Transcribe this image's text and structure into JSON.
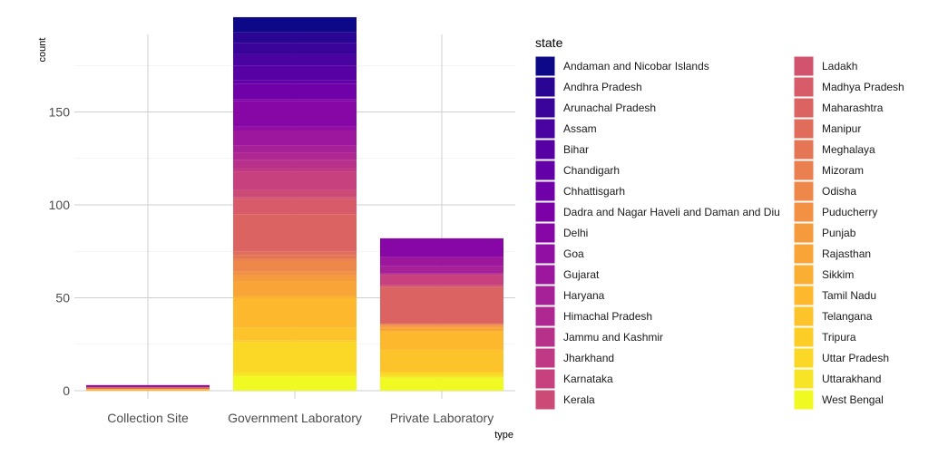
{
  "chart_data": {
    "type": "bar",
    "stacked": true,
    "xlabel": "type",
    "ylabel": "count",
    "ylim": [
      0,
      188
    ],
    "yticks": [
      0,
      50,
      100,
      150
    ],
    "grid": true,
    "legend_position": "right",
    "legend_title": "state",
    "categories": [
      "Collection Site",
      "Government Laboratory",
      "Private Laboratory"
    ],
    "series": [
      {
        "name": "Andaman and Nicobar Islands",
        "color": "#0D0887",
        "values": [
          0,
          8,
          0
        ]
      },
      {
        "name": "Andhra Pradesh",
        "color": "#2A0593",
        "values": [
          0,
          6,
          0
        ]
      },
      {
        "name": "Arunachal Pradesh",
        "color": "#3A049A",
        "values": [
          0,
          6,
          0
        ]
      },
      {
        "name": "Assam",
        "color": "#4903A0",
        "values": [
          0,
          6,
          0
        ]
      },
      {
        "name": "Bihar",
        "color": "#5701A4",
        "values": [
          0,
          8,
          0
        ]
      },
      {
        "name": "Chandigarh",
        "color": "#6300A7",
        "values": [
          0,
          2,
          0
        ]
      },
      {
        "name": "Chhattisgarh",
        "color": "#7000A8",
        "values": [
          0,
          8,
          0
        ]
      },
      {
        "name": "Dadra and Nagar Haveli and Daman and Diu",
        "color": "#7C02A8",
        "values": [
          0,
          1,
          0
        ]
      },
      {
        "name": "Delhi",
        "color": "#8707A6",
        "values": [
          1,
          14,
          10
        ]
      },
      {
        "name": "Goa",
        "color": "#920FA3",
        "values": [
          0,
          2,
          0
        ]
      },
      {
        "name": "Gujarat",
        "color": "#9C179E",
        "values": [
          0,
          8,
          5
        ]
      },
      {
        "name": "Haryana",
        "color": "#A62098",
        "values": [
          0,
          4,
          4
        ]
      },
      {
        "name": "Himachal Pradesh",
        "color": "#AF2892",
        "values": [
          0,
          4,
          0
        ]
      },
      {
        "name": "Jammu and Kashmir",
        "color": "#B7318A",
        "values": [
          0,
          4,
          0
        ]
      },
      {
        "name": "Jharkhand",
        "color": "#BF3984",
        "values": [
          0,
          2,
          1
        ]
      },
      {
        "name": "Karnataka",
        "color": "#C6417D",
        "values": [
          0,
          10,
          5
        ]
      },
      {
        "name": "Kerala",
        "color": "#CC4A76",
        "values": [
          0,
          4,
          1
        ]
      },
      {
        "name": "Ladakh",
        "color": "#D2536E",
        "values": [
          0,
          1,
          0
        ]
      },
      {
        "name": "Madhya Pradesh",
        "color": "#D75B68",
        "values": [
          0,
          8,
          0
        ]
      },
      {
        "name": "Maharashtra",
        "color": "#DB6361",
        "values": [
          1,
          20,
          20
        ]
      },
      {
        "name": "Manipur",
        "color": "#E06D5B",
        "values": [
          0,
          2,
          0
        ]
      },
      {
        "name": "Meghalaya",
        "color": "#E57655",
        "values": [
          0,
          2,
          0
        ]
      },
      {
        "name": "Mizoram",
        "color": "#EA7F50",
        "values": [
          0,
          1,
          0
        ]
      },
      {
        "name": "Odisha",
        "color": "#EE884A",
        "values": [
          0,
          6,
          1
        ]
      },
      {
        "name": "Puducherry",
        "color": "#F29144",
        "values": [
          0,
          2,
          0
        ]
      },
      {
        "name": "Punjab",
        "color": "#F59B3E",
        "values": [
          0,
          3,
          1
        ]
      },
      {
        "name": "Rajasthan",
        "color": "#F8A437",
        "values": [
          0,
          8,
          2
        ]
      },
      {
        "name": "Sikkim",
        "color": "#FAAE32",
        "values": [
          0,
          1,
          0
        ]
      },
      {
        "name": "Tamil Nadu",
        "color": "#FDB82D",
        "values": [
          1,
          16,
          10
        ]
      },
      {
        "name": "Telangana",
        "color": "#FDC32A",
        "values": [
          0,
          7,
          12
        ]
      },
      {
        "name": "Tripura",
        "color": "#FDCD27",
        "values": [
          0,
          1,
          0
        ]
      },
      {
        "name": "Uttar Pradesh",
        "color": "#FBD826",
        "values": [
          0,
          16,
          2
        ]
      },
      {
        "name": "Uttarakhand",
        "color": "#F7E426",
        "values": [
          0,
          2,
          1
        ]
      },
      {
        "name": "West Bengal",
        "color": "#F0F921",
        "values": [
          0,
          8,
          7
        ]
      }
    ]
  }
}
